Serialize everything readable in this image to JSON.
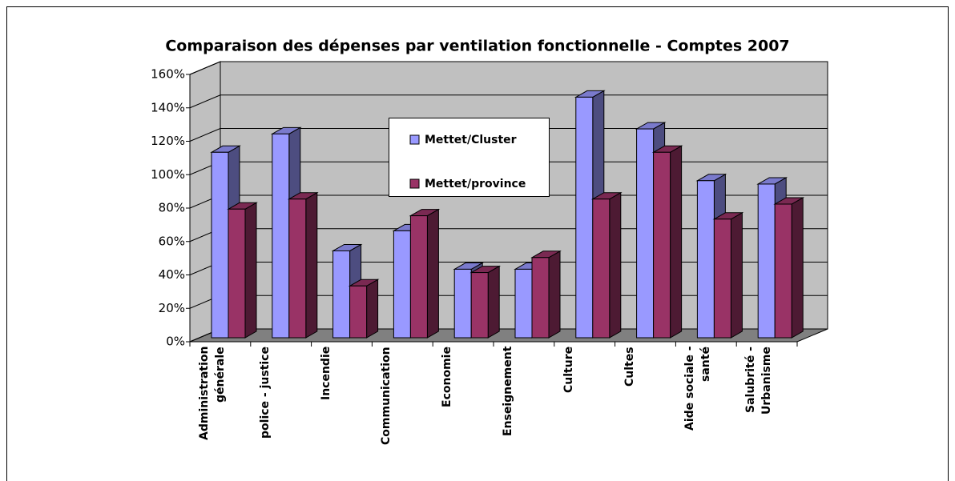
{
  "chart_data": {
    "type": "bar3d",
    "title": "Comparaison des dépenses par ventilation fonctionnelle - Comptes 2007",
    "categories": [
      "Administration\ngénérale",
      "police - justice",
      "Incendie",
      "Communication",
      "Economie",
      "Enseignement",
      "Culture",
      "Cultes",
      "Aide sociale -\nsanté",
      "Salubrité -\nUrbanisme"
    ],
    "series": [
      {
        "name": "Mettet/Cluster",
        "color": "#9999ff",
        "values": [
          111,
          122,
          52,
          64,
          41,
          41,
          144,
          125,
          94,
          92
        ]
      },
      {
        "name": "Mettet/province",
        "color": "#993366",
        "values": [
          77,
          83,
          31,
          73,
          39,
          48,
          83,
          111,
          71,
          80
        ]
      }
    ],
    "ylim": [
      0,
      160
    ],
    "yticks": [
      {
        "value": 0,
        "label": "0%"
      },
      {
        "value": 20,
        "label": "20%"
      },
      {
        "value": 40,
        "label": "40%"
      },
      {
        "value": 60,
        "label": "60%"
      },
      {
        "value": 80,
        "label": "80%"
      },
      {
        "value": 100,
        "label": "100%"
      },
      {
        "value": 120,
        "label": "120%"
      },
      {
        "value": 140,
        "label": "140%"
      },
      {
        "value": 160,
        "label": "160%"
      }
    ],
    "grid": true
  }
}
